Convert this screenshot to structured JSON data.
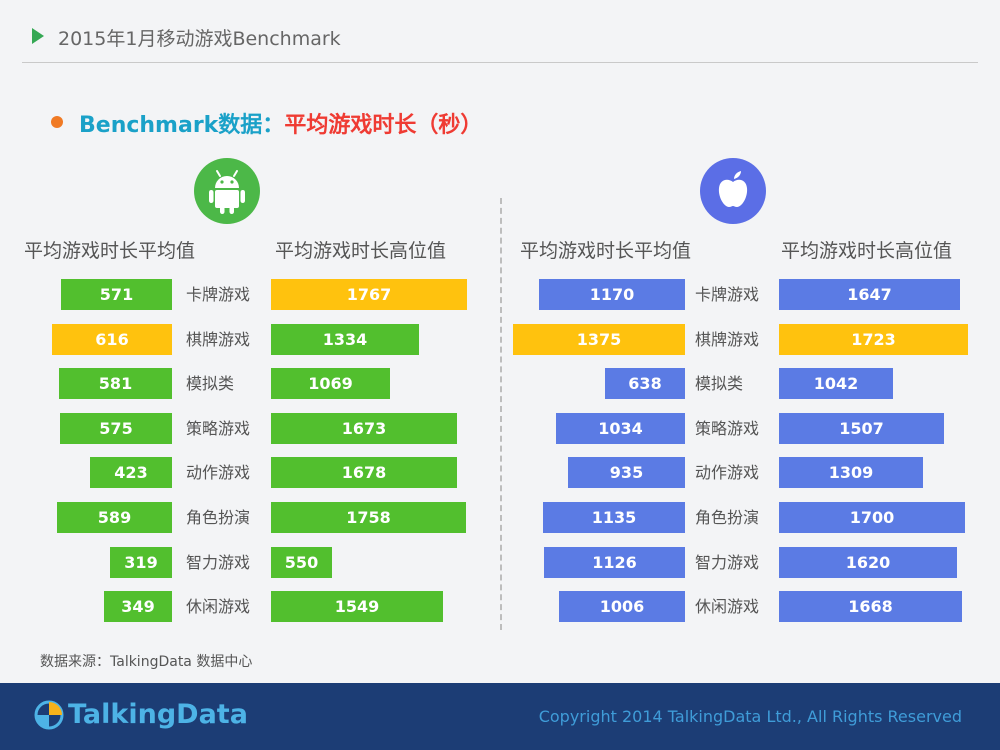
{
  "header": {
    "title": "2015年1月移动游戏Benchmark"
  },
  "section": {
    "label": "Benchmark数据：",
    "highlight": "平均游戏时长（秒）"
  },
  "columns": {
    "android_avg": "平均游戏时长平均值",
    "android_high": "平均游戏时长高位值",
    "ios_avg": "平均游戏时长平均值",
    "ios_high": "平均游戏时长高位值"
  },
  "colors": {
    "android": "#52bf2e",
    "ios": "#5b7be4",
    "highlight": "#ffc20e"
  },
  "chart_data": {
    "type": "bar",
    "categories": [
      "卡牌游戏",
      "棋牌游戏",
      "模拟类",
      "策略游戏",
      "动作游戏",
      "角色扮演",
      "智力游戏",
      "休闲游戏"
    ],
    "series": [
      {
        "name": "平均游戏时长平均值",
        "values": [
          571,
          616,
          581,
          575,
          423,
          589,
          319,
          349
        ],
        "highlight_index": 1
      },
      {
        "name": "平均游戏时长高位值",
        "values": [
          1767,
          1334,
          1069,
          1673,
          1678,
          1758,
          550,
          1549
        ],
        "highlight_index": 0
      },
      {
        "name": "平均游戏时长平均值",
        "values": [
          1170,
          1375,
          638,
          1034,
          935,
          1135,
          1126,
          1006
        ],
        "highlight_index": 1
      },
      {
        "name": "平均游戏时长高位值",
        "values": [
          1647,
          1723,
          1042,
          1507,
          1309,
          1700,
          1620,
          1668
        ],
        "highlight_index": 1
      }
    ]
  },
  "footer": {
    "source": "数据来源：TalkingData 数据中心",
    "logo": "TalkingData",
    "copyright": "Copyright 2014 TalkingData Ltd., All Rights Reserved"
  }
}
